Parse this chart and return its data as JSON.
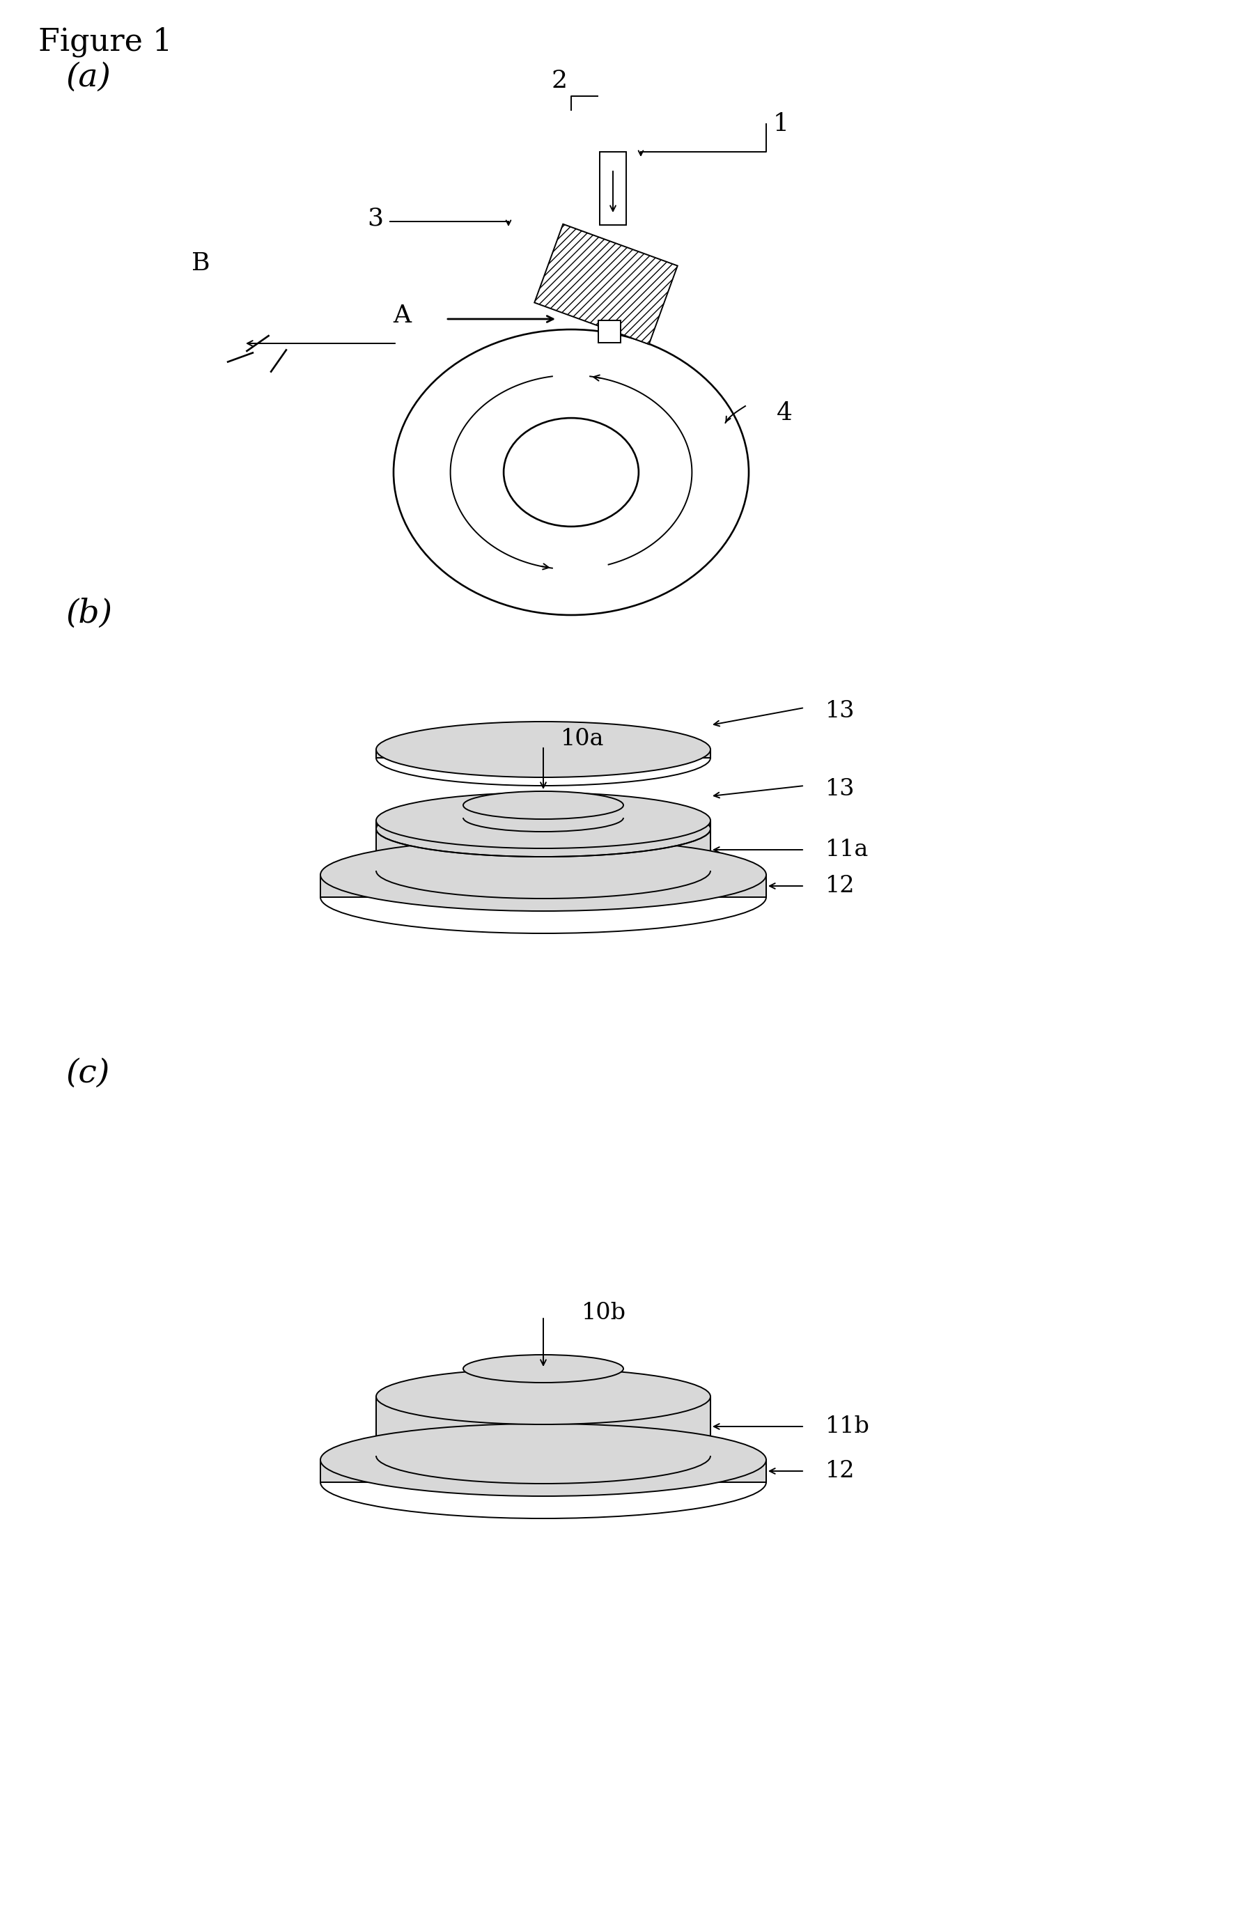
{
  "figure_title": "Figure 1",
  "bg_color": "#ffffff",
  "text_color": "#000000",
  "panel_labels": [
    "(a)",
    "(b)",
    "(c)"
  ],
  "lw": 1.4
}
